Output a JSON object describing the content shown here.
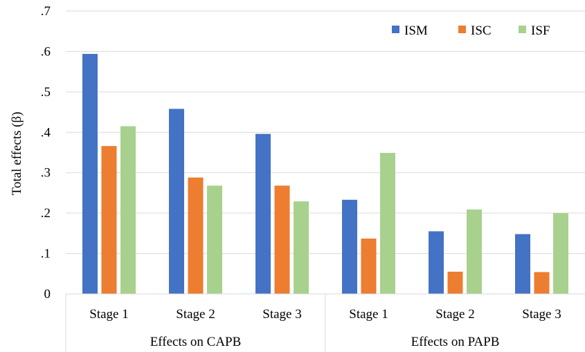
{
  "chart_data": {
    "type": "bar",
    "ylabel": "Total effects (β)",
    "ylim": [
      0,
      0.7
    ],
    "yticks": [
      {
        "value": 0,
        "label": "0"
      },
      {
        "value": 0.1,
        "label": ".1"
      },
      {
        "value": 0.2,
        "label": ".2"
      },
      {
        "value": 0.3,
        "label": ".3"
      },
      {
        "value": 0.4,
        "label": ".4"
      },
      {
        "value": 0.5,
        "label": ".5"
      },
      {
        "value": 0.6,
        "label": ".6"
      },
      {
        "value": 0.7,
        "label": ".7"
      }
    ],
    "categories": [
      "Stage 1",
      "Stage 2",
      "Stage 3",
      "Stage 1",
      "Stage 2",
      "Stage 3"
    ],
    "groups": [
      {
        "label": "Effects on CAPB",
        "count": 3
      },
      {
        "label": "Effects on PAPB",
        "count": 3
      }
    ],
    "series": [
      {
        "name": "ISM",
        "color": "#4472C4",
        "values": [
          0.594,
          0.458,
          0.396,
          0.233,
          0.155,
          0.148
        ]
      },
      {
        "name": "ISC",
        "color": "#ED7D31",
        "values": [
          0.366,
          0.288,
          0.268,
          0.137,
          0.055,
          0.054
        ]
      },
      {
        "name": "ISF",
        "color": "#A9D18E",
        "values": [
          0.415,
          0.268,
          0.229,
          0.349,
          0.209,
          0.2
        ]
      }
    ],
    "grid": true,
    "legend_position": "top-right"
  }
}
